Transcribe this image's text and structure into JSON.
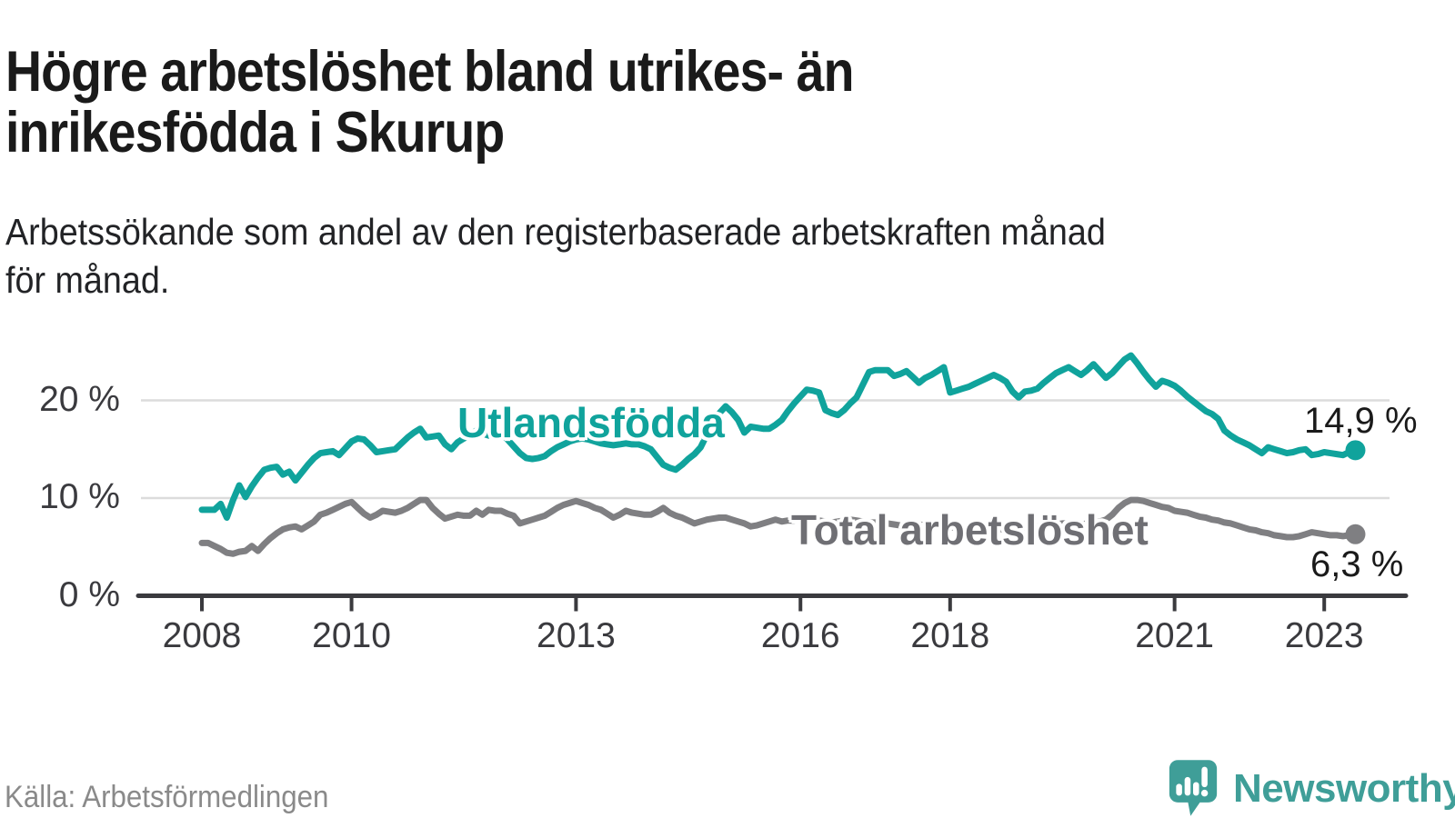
{
  "header": {
    "title": "Högre arbetslöshet bland utrikes- än inrikesfödda i Skurup",
    "title_lines": [
      "Högre arbetslöshet bland utrikes- än",
      "inrikesfödda i Skurup"
    ],
    "subtitle_lines": [
      "Arbetssökande som andel av den registerbaserade arbetskraften månad",
      "för månad."
    ]
  },
  "footer": {
    "source": "Källa: Arbetsförmedlingen",
    "logo_text": "Newsworthy",
    "logo_color": "#3f9e98"
  },
  "colors": {
    "axis": "#3a3a3e",
    "gridline": "#dcdcdc",
    "teal": "#10a39c",
    "gray_line": "#7f7f82",
    "gray_label": "#6f6f74",
    "end_label": "#1a1a1a"
  },
  "chart_data": {
    "type": "line",
    "title": "Högre arbetslöshet bland utrikes- än inrikesfödda i Skurup",
    "subtitle": "Arbetssökande som andel av den registerbaserade arbetskraften månad för månad.",
    "grid": "horizontal",
    "x_axis": {
      "start": "2008-01",
      "end": "2023-06",
      "ticks": [
        {
          "year": 2008,
          "label": "2008"
        },
        {
          "year": 2010,
          "label": "2010"
        },
        {
          "year": 2013,
          "label": "2013"
        },
        {
          "year": 2016,
          "label": "2016"
        },
        {
          "year": 2018,
          "label": "2018"
        },
        {
          "year": 2021,
          "label": "2021"
        },
        {
          "year": 2023,
          "label": "2023"
        }
      ]
    },
    "y_axis": {
      "unit": "%",
      "ylim": [
        0,
        26
      ],
      "ticks": [
        {
          "value": 20,
          "label": "20 %"
        },
        {
          "value": 10,
          "label": "10 %"
        },
        {
          "value": 0,
          "label": "0 %"
        }
      ]
    },
    "series": [
      {
        "name": "Utlandsfödda",
        "color": "#10a39c",
        "end_value": 14.9,
        "end_label": "14,9 %",
        "start": "2008-01",
        "monthly_values": [
          8.8,
          8.8,
          8.8,
          9.4,
          8.0,
          9.8,
          11.3,
          10.1,
          11.2,
          12.1,
          12.9,
          13.1,
          13.2,
          12.4,
          12.7,
          11.8,
          12.6,
          13.4,
          14.1,
          14.6,
          14.7,
          14.8,
          14.4,
          15.1,
          15.8,
          16.1,
          16.0,
          15.4,
          14.7,
          14.8,
          14.9,
          15.0,
          15.6,
          16.2,
          16.7,
          17.1,
          16.2,
          16.3,
          16.4,
          15.5,
          15.0,
          15.7,
          16.1,
          16.4,
          16.9,
          16.6,
          16.4,
          16.5,
          16.6,
          16.0,
          15.3,
          14.6,
          14.1,
          14.0,
          14.1,
          14.3,
          14.8,
          15.2,
          15.5,
          15.8,
          16.0,
          16.1,
          16.0,
          15.8,
          15.6,
          15.5,
          15.4,
          15.5,
          15.6,
          15.5,
          15.5,
          15.3,
          15.0,
          14.2,
          13.4,
          13.1,
          12.9,
          13.4,
          14.0,
          14.5,
          15.2,
          16.5,
          18.0,
          18.7,
          19.4,
          18.8,
          18.0,
          16.7,
          17.3,
          17.2,
          17.1,
          17.1,
          17.5,
          18.0,
          18.9,
          19.7,
          20.4,
          21.1,
          21.0,
          20.8,
          19.0,
          18.7,
          18.5,
          19.0,
          19.7,
          20.3,
          21.6,
          22.9,
          23.1,
          23.1,
          23.1,
          22.5,
          22.7,
          23.0,
          22.4,
          21.8,
          22.3,
          22.6,
          23.0,
          23.4,
          20.8,
          21.0,
          21.2,
          21.4,
          21.7,
          22.0,
          22.3,
          22.6,
          22.3,
          21.9,
          20.9,
          20.3,
          20.9,
          21.0,
          21.2,
          21.8,
          22.3,
          22.8,
          23.1,
          23.4,
          23.0,
          22.6,
          23.1,
          23.7,
          23.0,
          22.3,
          22.8,
          23.5,
          24.2,
          24.6,
          23.8,
          22.9,
          22.1,
          21.4,
          22.0,
          21.8,
          21.5,
          21.0,
          20.4,
          19.9,
          19.4,
          18.9,
          18.6,
          18.1,
          16.9,
          16.4,
          16.0,
          15.7,
          15.4,
          15.0,
          14.6,
          15.2,
          15.0,
          14.8,
          14.6,
          14.7,
          14.9,
          15.0,
          14.4,
          14.5,
          14.7,
          14.6,
          14.5,
          14.4,
          14.7,
          14.9
        ]
      },
      {
        "name": "Total arbetslöshet",
        "color": "#7f7f82",
        "end_value": 6.3,
        "end_label": "6,3 %",
        "start": "2008-01",
        "monthly_values": [
          5.4,
          5.4,
          5.1,
          4.8,
          4.4,
          4.3,
          4.5,
          4.6,
          5.1,
          4.6,
          5.3,
          5.9,
          6.4,
          6.8,
          7.0,
          7.1,
          6.8,
          7.2,
          7.6,
          8.3,
          8.5,
          8.8,
          9.1,
          9.4,
          9.6,
          9.0,
          8.4,
          8.0,
          8.3,
          8.7,
          8.6,
          8.5,
          8.7,
          9.0,
          9.4,
          9.8,
          9.8,
          9.0,
          8.4,
          7.9,
          8.1,
          8.3,
          8.2,
          8.2,
          8.7,
          8.3,
          8.8,
          8.7,
          8.7,
          8.4,
          8.2,
          7.4,
          7.6,
          7.8,
          8.0,
          8.2,
          8.6,
          9.0,
          9.3,
          9.5,
          9.7,
          9.5,
          9.3,
          9.0,
          8.8,
          8.4,
          8.0,
          8.3,
          8.7,
          8.5,
          8.4,
          8.3,
          8.3,
          8.6,
          9.0,
          8.5,
          8.2,
          8.0,
          7.7,
          7.4,
          7.6,
          7.8,
          7.9,
          8.0,
          8.0,
          7.8,
          7.6,
          7.4,
          7.1,
          7.2,
          7.4,
          7.6,
          7.8,
          7.6,
          7.7,
          7.7,
          7.8,
          7.9,
          7.8,
          7.7,
          7.6,
          7.5,
          7.6,
          7.7,
          7.8,
          7.7,
          7.6,
          7.5,
          7.5,
          7.4,
          7.4,
          7.3,
          7.2,
          7.3,
          7.4,
          7.3,
          7.2,
          7.1,
          7.1,
          7.0,
          7.0,
          7.0,
          6.9,
          6.9,
          6.8,
          6.9,
          7.0,
          6.9,
          6.8,
          6.8,
          6.9,
          6.9,
          7.0,
          7.0,
          7.1,
          7.1,
          7.2,
          7.3,
          7.4,
          7.4,
          7.3,
          7.3,
          7.4,
          7.5,
          7.6,
          7.8,
          8.3,
          9.0,
          9.5,
          9.8,
          9.8,
          9.7,
          9.5,
          9.3,
          9.1,
          9.0,
          8.7,
          8.6,
          8.5,
          8.3,
          8.1,
          8.0,
          7.8,
          7.7,
          7.5,
          7.4,
          7.2,
          7.0,
          6.8,
          6.7,
          6.5,
          6.4,
          6.2,
          6.1,
          6.0,
          6.0,
          6.1,
          6.3,
          6.5,
          6.4,
          6.3,
          6.2,
          6.2,
          6.1,
          6.2,
          6.3
        ]
      }
    ]
  }
}
